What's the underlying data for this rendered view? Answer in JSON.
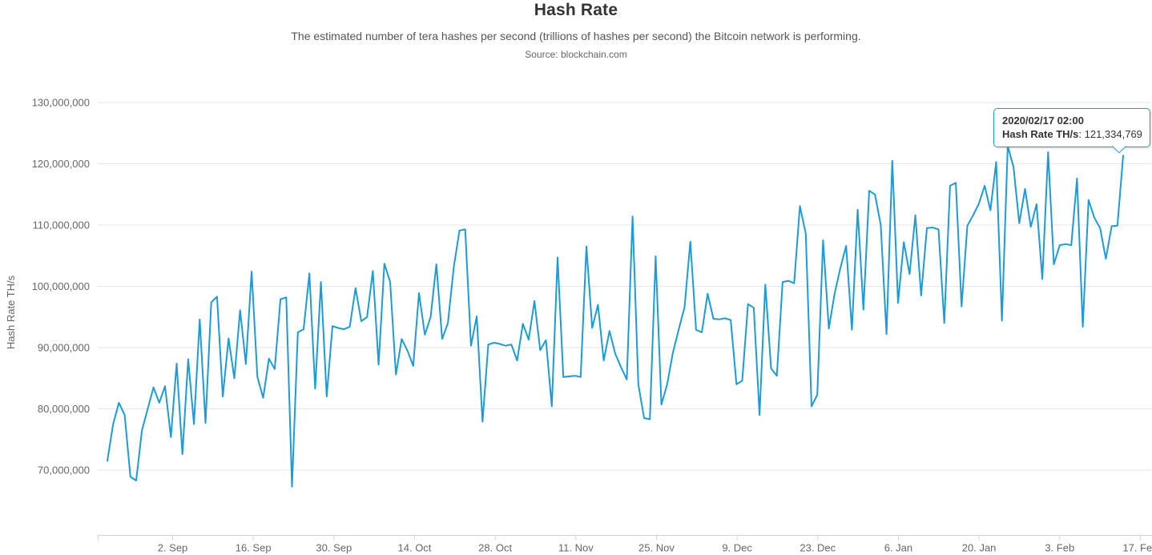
{
  "header": {
    "title": "Hash Rate",
    "subtitle": "The estimated number of tera hashes per second (trillions of hashes per second) the Bitcoin network is performing.",
    "source": "Source: blockchain.com"
  },
  "tooltip": {
    "title": "2020/02/17 02:00",
    "label": "Hash Rate TH/s",
    "separator": ": ",
    "value": "121,334,769"
  },
  "colors": {
    "line": "#1b9cd9",
    "grid": "#e6e6e6",
    "axis_line": "#ccd6eb",
    "tick_text": "#666666",
    "title_text": "#333333",
    "tooltip_border": "#1b9cd9"
  },
  "chart_data": {
    "type": "line",
    "title": "Hash Rate",
    "subtitle": "The estimated number of tera hashes per second (trillions of hashes per second) the Bitcoin network is performing.",
    "source": "Source: blockchain.com",
    "legend": "none",
    "grid": "horizontal-only",
    "x_axis": {
      "tick_labels": [
        "2. Sep",
        "16. Sep",
        "30. Sep",
        "14. Oct",
        "28. Oct",
        "11. Nov",
        "25. Nov",
        "9. Dec",
        "23. Dec",
        "6. Jan",
        "20. Jan",
        "3. Feb",
        "17. Feb"
      ],
      "range_note": "daily data, late Aug 2019 to 17 Feb 2020"
    },
    "y_axis": {
      "title": "Hash Rate TH/s",
      "tick_values_millions": [
        70,
        80,
        90,
        100,
        110,
        120,
        130
      ],
      "tick_labels": [
        "70,000,000",
        "80,000,000",
        "90,000,000",
        "100,000,000",
        "110,000,000",
        "120,000,000",
        "130,000,000"
      ],
      "ylim_millions": [
        59,
        132
      ]
    },
    "hover_point": {
      "date": "2020/02/17 02:00",
      "value_ths": 121334769
    },
    "series": [
      {
        "name": "Hash Rate TH/s",
        "unit": "millions of TH/s",
        "color": "#1b9cd9",
        "values_millions": [
          71.5,
          77.5,
          81.0,
          79.0,
          68.9,
          68.3,
          76.5,
          80.0,
          83.5,
          81.0,
          83.7,
          75.4,
          87.4,
          72.6,
          88.1,
          77.5,
          94.6,
          77.7,
          97.4,
          98.3,
          82.0,
          91.5,
          85.0,
          96.1,
          87.3,
          102.4,
          85.2,
          81.8,
          88.2,
          86.5,
          97.9,
          98.2,
          67.3,
          92.5,
          93.0,
          102.1,
          83.3,
          100.7,
          82.0,
          93.5,
          93.2,
          93.0,
          93.4,
          99.7,
          94.3,
          95.0,
          102.5,
          87.2,
          103.7,
          100.7,
          85.6,
          91.4,
          89.5,
          87.0,
          98.9,
          92.1,
          95.0,
          103.6,
          91.4,
          94.0,
          103.0,
          109.1,
          109.3,
          90.3,
          95.1,
          77.9,
          90.5,
          90.8,
          90.6,
          90.3,
          90.5,
          87.9,
          93.9,
          91.3,
          97.6,
          89.6,
          91.2,
          80.4,
          104.7,
          85.2,
          85.3,
          85.4,
          85.2,
          106.5,
          93.2,
          97.0,
          87.9,
          92.7,
          89.0,
          86.8,
          84.8,
          111.4,
          84.0,
          78.5,
          78.3,
          104.9,
          80.7,
          84.0,
          89.2,
          93.0,
          96.6,
          107.3,
          92.9,
          92.5,
          98.8,
          94.7,
          94.6,
          94.8,
          94.5,
          84.0,
          84.6,
          97.1,
          96.5,
          79.0,
          100.3,
          86.6,
          85.4,
          100.7,
          100.9,
          100.5,
          113.1,
          108.6,
          80.4,
          82.3,
          107.5,
          93.1,
          98.8,
          103.0,
          106.6,
          92.9,
          112.5,
          96.2,
          115.6,
          115.0,
          110.0,
          92.2,
          120.5,
          97.3,
          107.2,
          102.0,
          111.6,
          98.5,
          109.5,
          109.6,
          109.3,
          94.0,
          116.4,
          116.9,
          96.7,
          109.9,
          111.6,
          113.5,
          116.4,
          112.4,
          120.3,
          94.4,
          122.9,
          119.5,
          110.3,
          115.9,
          109.7,
          113.4,
          101.2,
          121.9,
          103.6,
          106.7,
          106.9,
          106.7,
          117.6,
          93.4,
          114.1,
          111.2,
          109.5,
          104.5,
          109.8,
          109.9,
          121.334769
        ]
      }
    ]
  }
}
